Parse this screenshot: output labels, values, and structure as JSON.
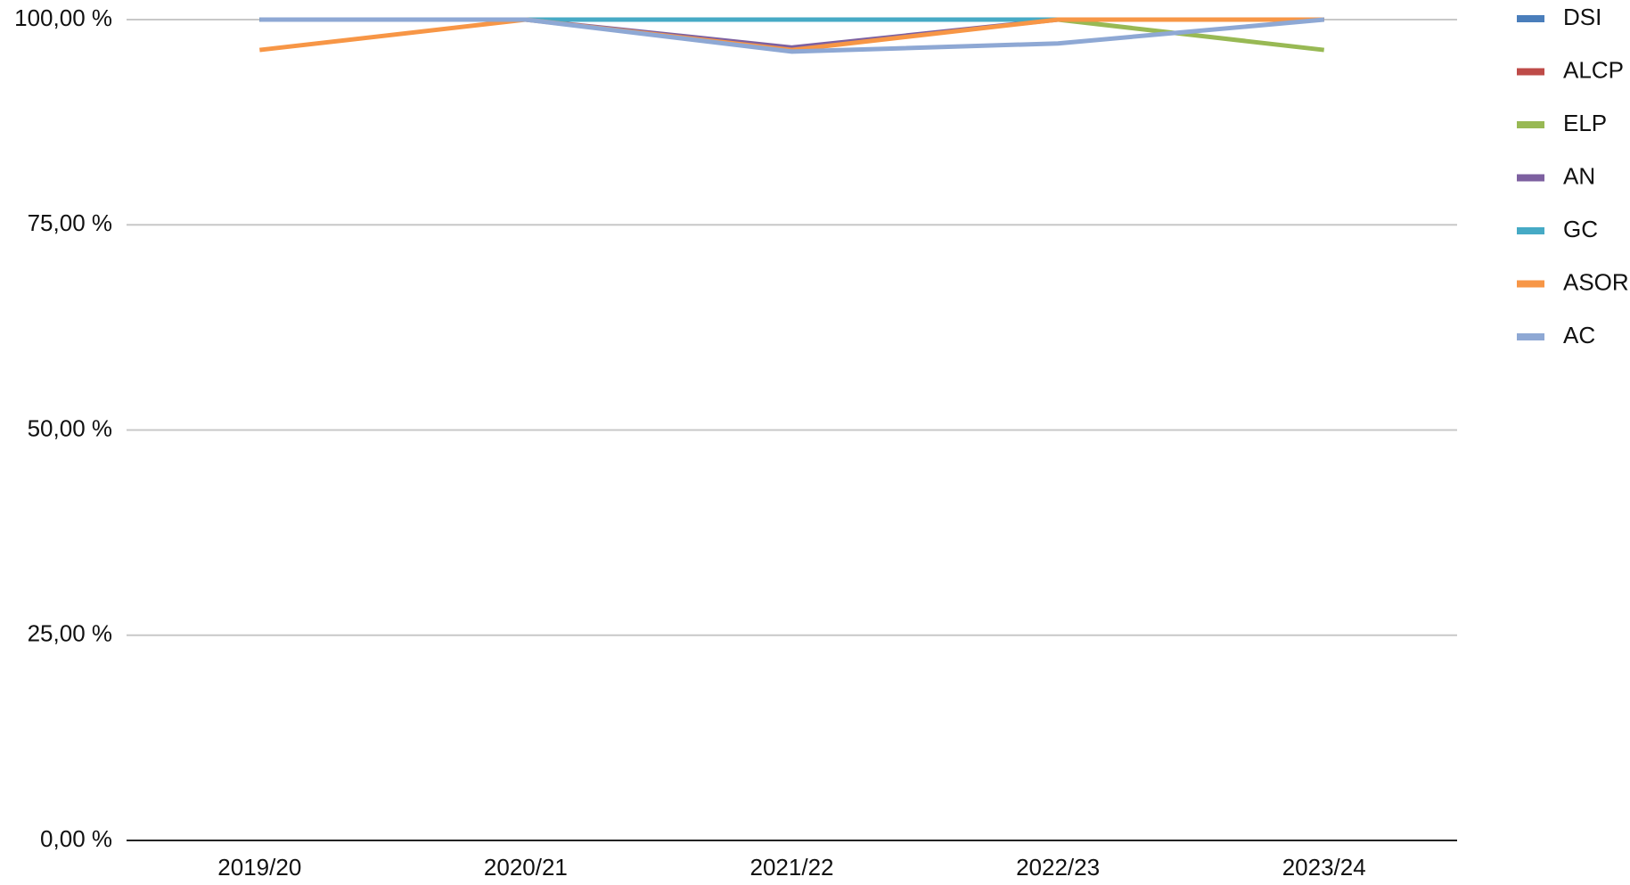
{
  "chart_data": {
    "type": "line",
    "categories": [
      "2019/20",
      "2020/21",
      "2021/22",
      "2022/23",
      "2023/24"
    ],
    "series": [
      {
        "name": "DSI",
        "color": "#4a7ebb",
        "values": [
          100,
          100,
          100,
          100,
          100
        ]
      },
      {
        "name": "ALCP",
        "color": "#be4b48",
        "values": [
          100,
          100,
          100,
          100,
          100
        ]
      },
      {
        "name": "ELP",
        "color": "#98b954",
        "values": [
          100,
          100,
          100,
          100,
          96.3
        ]
      },
      {
        "name": "AN",
        "color": "#7d60a0",
        "values": [
          100,
          100,
          96.6,
          100,
          100
        ]
      },
      {
        "name": "GC",
        "color": "#46aac5",
        "values": [
          100,
          100,
          100,
          100,
          100
        ]
      },
      {
        "name": "ASOR",
        "color": "#f79646",
        "values": [
          96.3,
          100,
          96.3,
          100,
          100
        ]
      },
      {
        "name": "AC",
        "color": "#8ea8d4",
        "values": [
          100,
          100,
          96.1,
          97.1,
          100
        ]
      }
    ],
    "ylim": [
      0,
      100
    ],
    "yticks": [
      {
        "value": 0,
        "label": "0,00 %"
      },
      {
        "value": 25,
        "label": "25,00 %"
      },
      {
        "value": 50,
        "label": "50,00 %"
      },
      {
        "value": 75,
        "label": "75,00 %"
      },
      {
        "value": 100,
        "label": "100,00 %"
      }
    ],
    "grid": true,
    "legend": "right"
  }
}
